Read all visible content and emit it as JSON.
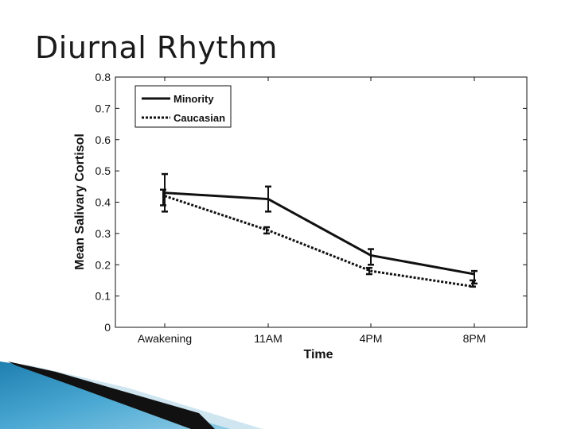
{
  "slide": {
    "title": "Diurnal Rhythm"
  },
  "chart_data": {
    "type": "line",
    "title": "",
    "xlabel": "Time",
    "ylabel": "Mean Salivary Cortisol",
    "categories": [
      "Awakening",
      "11AM",
      "4PM",
      "8PM"
    ],
    "ylim": [
      0,
      0.8
    ],
    "yticks": [
      "0",
      "0.1",
      "0.2",
      "0.3",
      "0.4",
      "0.5",
      "0.6",
      "0.7",
      "0.8"
    ],
    "legend_position": "top-left",
    "series": [
      {
        "name": "Minority",
        "style": "solid",
        "values": [
          0.43,
          0.41,
          0.23,
          0.17
        ],
        "err_low": [
          0.37,
          0.37,
          0.2,
          0.14
        ],
        "err_high": [
          0.49,
          0.45,
          0.25,
          0.18
        ]
      },
      {
        "name": "Caucasian",
        "style": "dotted",
        "values": [
          0.42,
          0.31,
          0.18,
          0.13
        ],
        "err_low": [
          0.39,
          0.3,
          0.17,
          0.13
        ],
        "err_high": [
          0.44,
          0.32,
          0.19,
          0.15
        ]
      }
    ],
    "colors": {
      "line": "#111111",
      "frame": "#111111"
    }
  }
}
